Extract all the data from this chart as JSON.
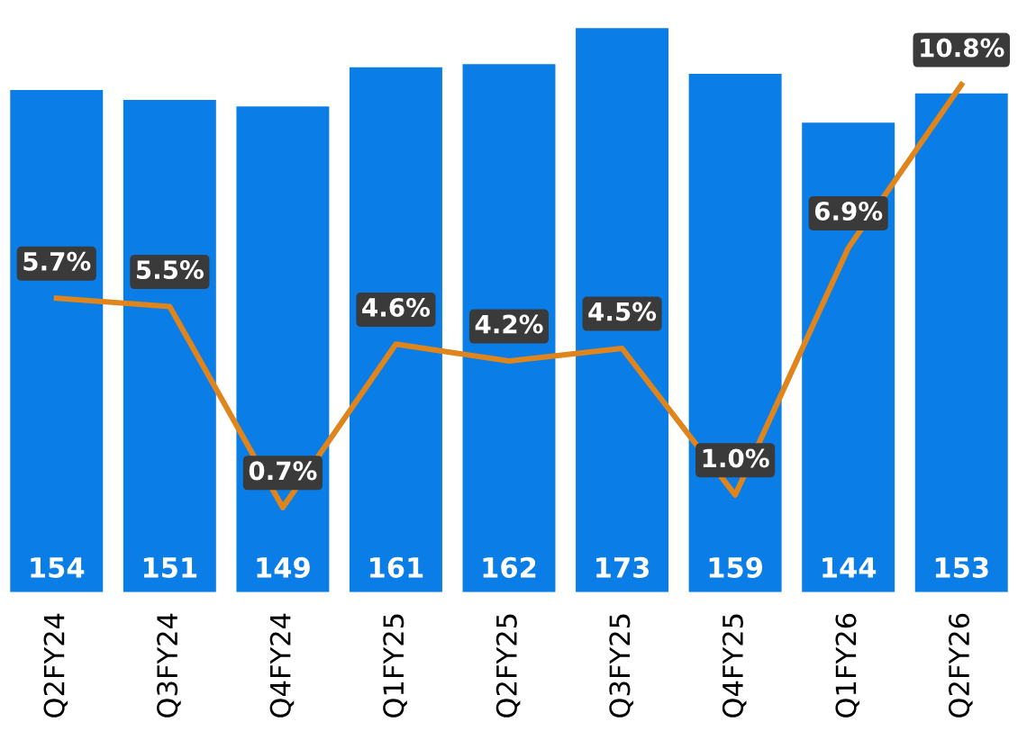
{
  "chart_data": {
    "type": "bar",
    "categories": [
      "Q2FY24",
      "Q3FY24",
      "Q4FY24",
      "Q1FY25",
      "Q2FY25",
      "Q3FY25",
      "Q4FY25",
      "Q1FY26",
      "Q2FY26"
    ],
    "series": [
      {
        "color": "#0a7ee6",
        "values": [
          154,
          151,
          149,
          161,
          162,
          173,
          159,
          144,
          153
        ],
        "value_labels": [
          "154",
          "151",
          "149",
          "161",
          "162",
          "173",
          "159",
          "144",
          "153"
        ]
      },
      {
        "type": "line",
        "axis": "y2",
        "color": "#e0841c",
        "values": [
          5.7,
          5.5,
          0.7,
          4.6,
          4.2,
          4.5,
          1.0,
          6.9,
          10.8
        ],
        "value_labels": [
          "5.7%",
          "5.5%",
          "0.7%",
          "4.6%",
          "4.2%",
          "4.5%",
          "1.0%",
          "6.9%",
          "10.8%"
        ]
      }
    ],
    "tick_labels": "x",
    "grid": false,
    "legend": false,
    "marker": "none",
    "line_style": "solid"
  }
}
